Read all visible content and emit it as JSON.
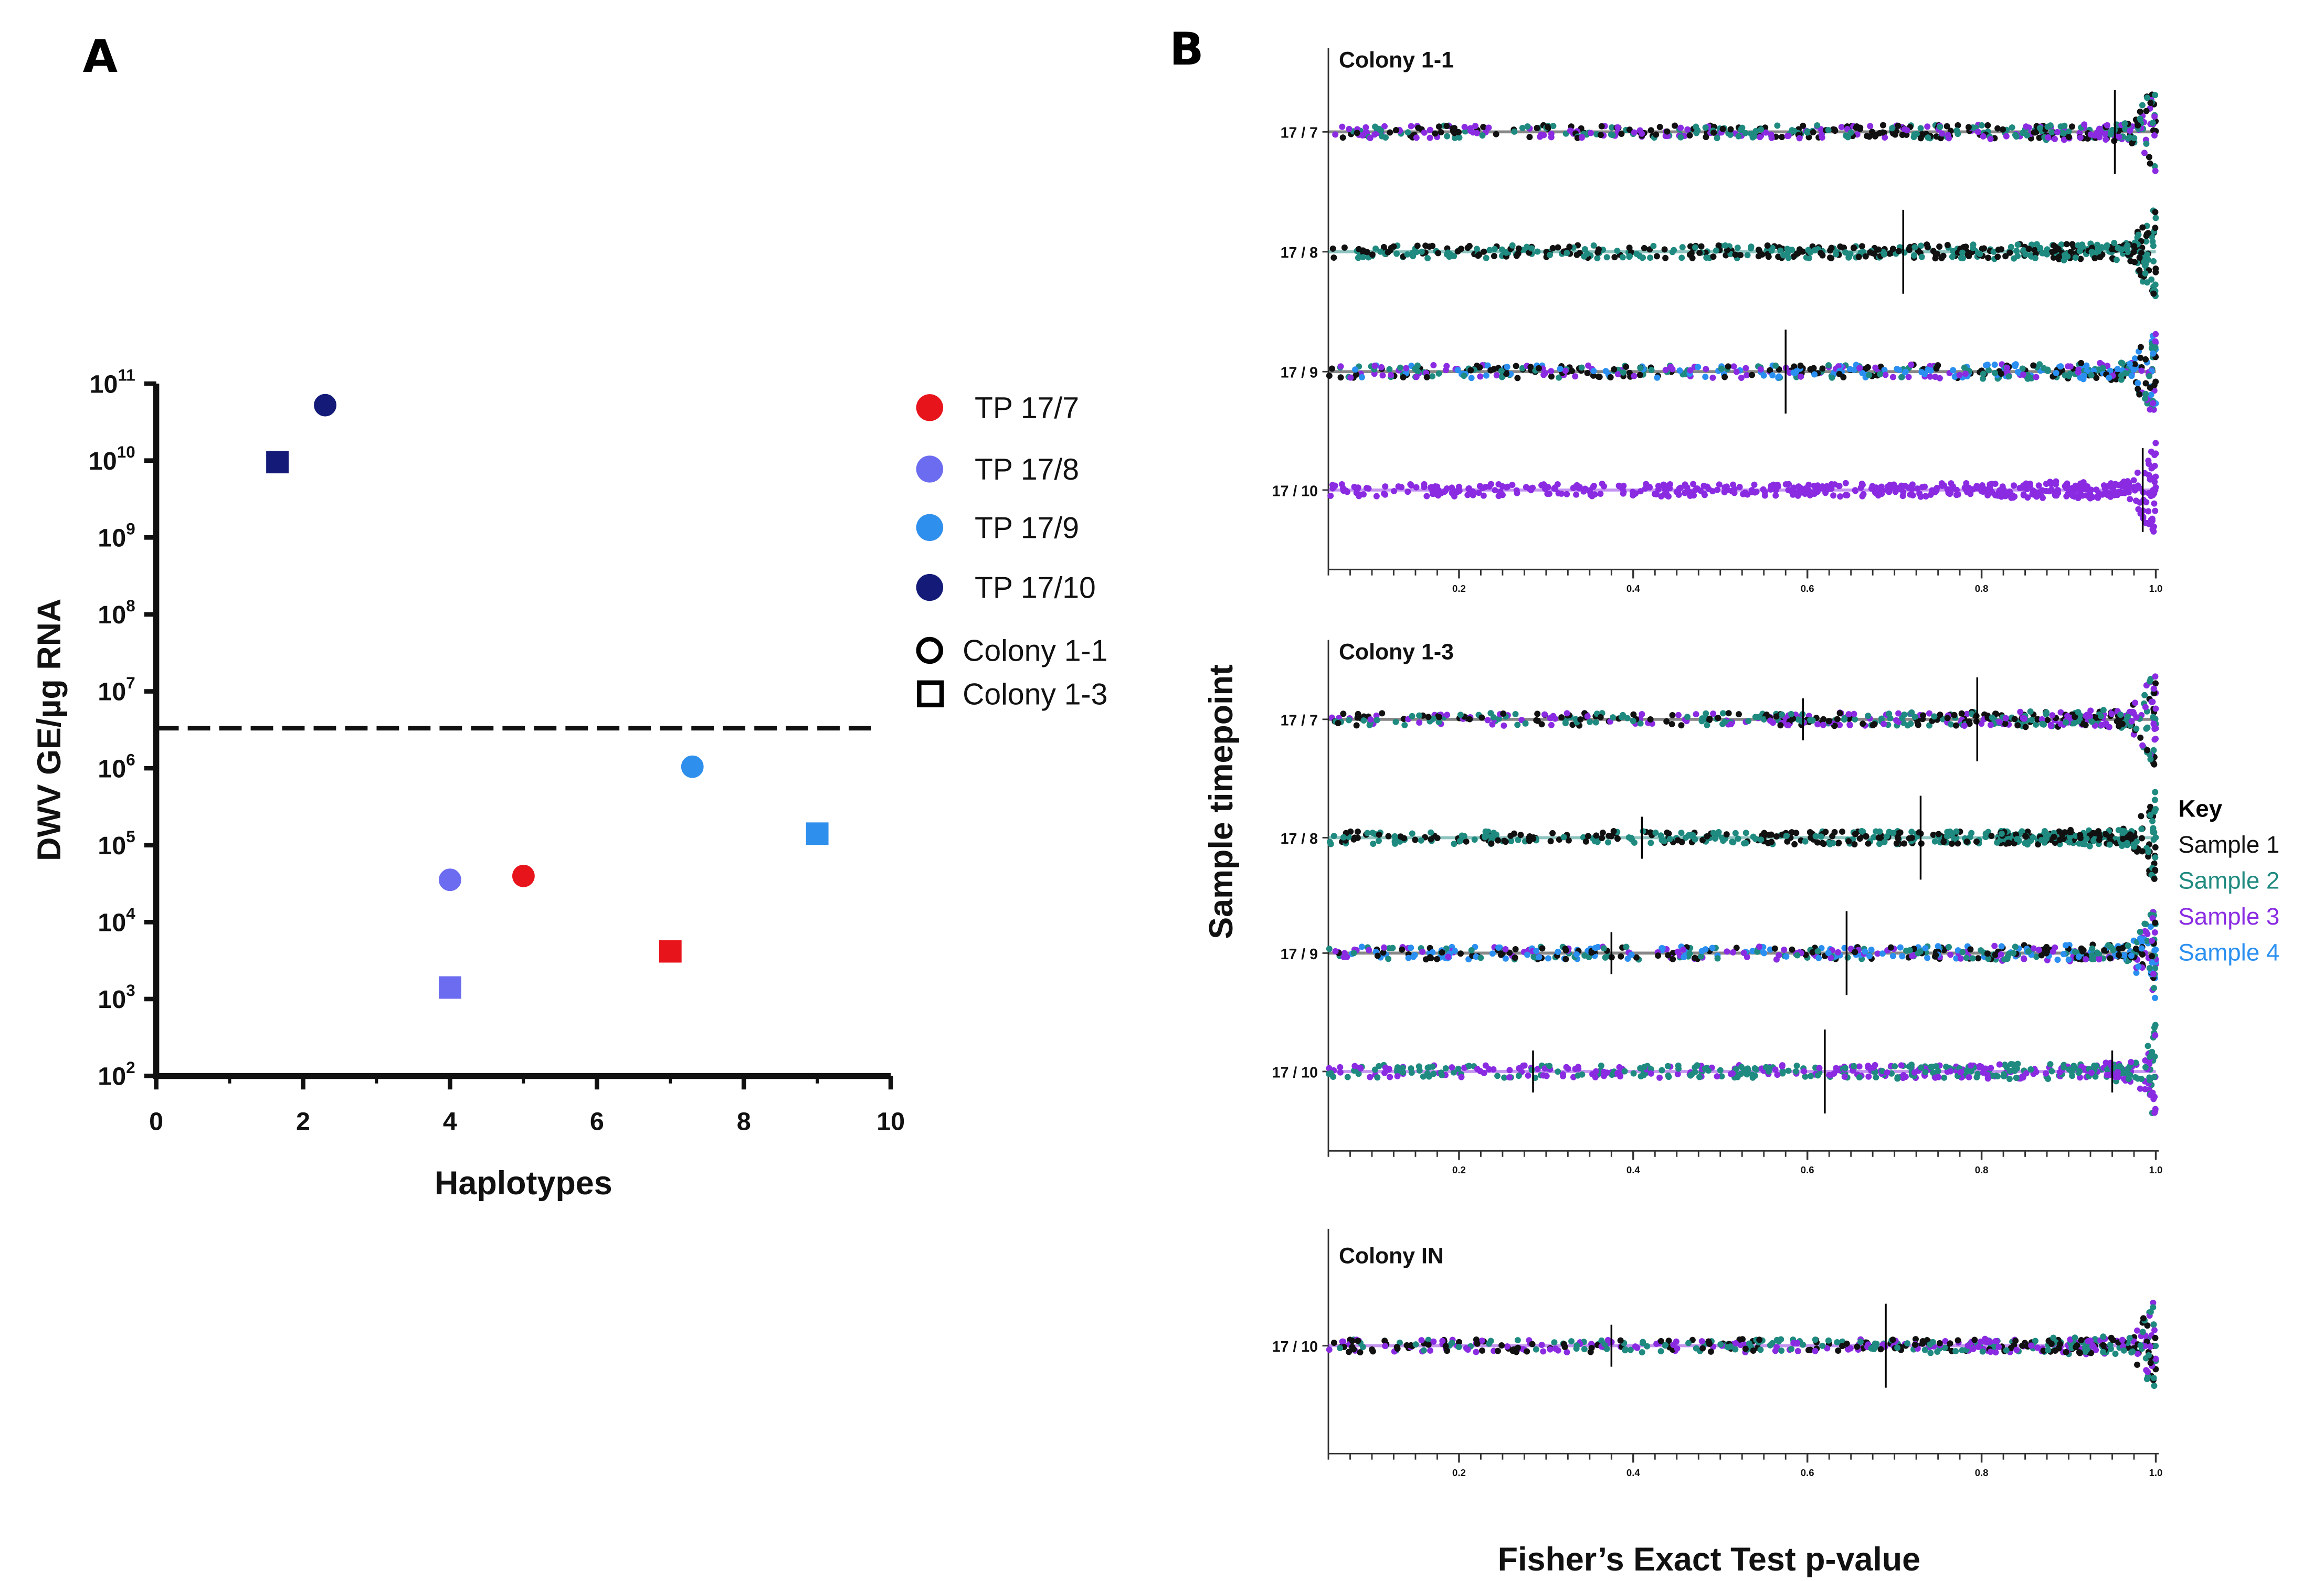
{
  "figure": {
    "panel_a_label": "A",
    "panel_b_label": "B"
  },
  "chart_data": [
    {
      "type": "scatter",
      "panel": "A",
      "xlabel": "Haplotypes",
      "ylabel": "DWV GE/µg RNA",
      "yscale": "log",
      "xlim": [
        0,
        10
      ],
      "ylim_exponent": [
        2,
        11
      ],
      "xticks": [
        0,
        2,
        4,
        6,
        8,
        10
      ],
      "yticks": [
        {
          "base": "10",
          "exp": "2"
        },
        {
          "base": "10",
          "exp": "3"
        },
        {
          "base": "10",
          "exp": "4"
        },
        {
          "base": "10",
          "exp": "5"
        },
        {
          "base": "10",
          "exp": "6"
        },
        {
          "base": "10",
          "exp": "7"
        },
        {
          "base": "10",
          "exp": "8"
        },
        {
          "base": "10",
          "exp": "9"
        },
        {
          "base": "10",
          "exp": "10"
        },
        {
          "base": "10",
          "exp": "11"
        }
      ],
      "threshold_log10": 6.52,
      "threshold_style": "dashed",
      "series": [
        {
          "name": "TP 17/7",
          "color": "#e8141c",
          "points": [
            {
              "x": 5.0,
              "y_log10": 4.6,
              "colony": "Colony 1-1"
            },
            {
              "x": 7.0,
              "y_log10": 3.62,
              "colony": "Colony 1-3"
            }
          ]
        },
        {
          "name": "TP 17/8",
          "color": "#6c6cf0",
          "points": [
            {
              "x": 4.0,
              "y_log10": 4.55,
              "colony": "Colony 1-1"
            },
            {
              "x": 4.0,
              "y_log10": 3.15,
              "colony": "Colony 1-3"
            }
          ]
        },
        {
          "name": "TP 17/9",
          "color": "#2f8fec",
          "points": [
            {
              "x": 7.3,
              "y_log10": 6.02,
              "colony": "Colony 1-1"
            },
            {
              "x": 9.0,
              "y_log10": 5.15,
              "colony": "Colony 1-3"
            }
          ]
        },
        {
          "name": "TP 17/10",
          "color": "#131a78",
          "points": [
            {
              "x": 2.3,
              "y_log10": 10.72,
              "colony": "Colony 1-1"
            },
            {
              "x": 1.65,
              "y_log10": 9.98,
              "colony": "Colony 1-3"
            }
          ]
        }
      ],
      "marker_legend": [
        {
          "label": "Colony 1-1",
          "shape": "circle"
        },
        {
          "label": "Colony 1-3",
          "shape": "square"
        }
      ]
    },
    {
      "type": "strip",
      "panel": "B",
      "xlabel": "Fisher’s Exact Test p-value",
      "ylabel": "Sample timepoint",
      "xlim": [
        0.05,
        1.0
      ],
      "xticks": [
        "0.2",
        "0.4",
        "0.6",
        "0.8",
        "1.0"
      ],
      "key": {
        "title": "Key",
        "items": [
          {
            "label": "Sample 1",
            "color": "#111111"
          },
          {
            "label": "Sample 2",
            "color": "#1f8a80"
          },
          {
            "label": "Sample 3",
            "color": "#8a2be2"
          },
          {
            "label": "Sample 4",
            "color": "#2a8ff0"
          }
        ]
      },
      "panels": [
        {
          "title": "Colony 1-1",
          "rows": [
            {
              "label": "17 / 7",
              "samples": [
                "Sample 1",
                "Sample 2",
                "Sample 3"
              ],
              "median_lines": [
                0.953
              ],
              "half_heights": [
                28
              ]
            },
            {
              "label": "17 / 8",
              "samples": [
                "Sample 2",
                "Sample 1"
              ],
              "median_lines": [
                0.71
              ],
              "half_heights": [
                28
              ]
            },
            {
              "label": "17 / 9",
              "samples": [
                "Sample 1",
                "Sample 2",
                "Sample 3",
                "Sample 4"
              ],
              "median_lines": [
                0.575
              ],
              "half_heights": [
                28
              ]
            },
            {
              "label": "17 / 10",
              "samples": [
                "Sample 3"
              ],
              "median_lines": [
                0.985
              ],
              "half_heights": [
                28
              ]
            }
          ]
        },
        {
          "title": "Colony 1-3",
          "rows": [
            {
              "label": "17 / 7",
              "samples": [
                "Sample 1",
                "Sample 2",
                "Sample 3"
              ],
              "median_lines": [
                0.795,
                0.595
              ],
              "half_heights": [
                28,
                14
              ]
            },
            {
              "label": "17 / 8",
              "samples": [
                "Sample 2",
                "Sample 1"
              ],
              "median_lines": [
                0.73,
                0.41
              ],
              "half_heights": [
                28,
                14
              ]
            },
            {
              "label": "17 / 9",
              "samples": [
                "Sample 1",
                "Sample 2",
                "Sample 3",
                "Sample 4"
              ],
              "median_lines": [
                0.645,
                0.375
              ],
              "half_heights": [
                28,
                14
              ]
            },
            {
              "label": "17 / 10",
              "samples": [
                "Sample 3",
                "Sample 2"
              ],
              "median_lines": [
                0.62,
                0.285,
                0.95
              ],
              "half_heights": [
                28,
                14,
                14
              ]
            }
          ]
        },
        {
          "title": "Colony IN",
          "rows": [
            {
              "label": "17 / 10",
              "samples": [
                "Sample 3",
                "Sample 1",
                "Sample 2"
              ],
              "median_lines": [
                0.69,
                0.375
              ],
              "half_heights": [
                28,
                14
              ]
            }
          ]
        }
      ]
    }
  ]
}
